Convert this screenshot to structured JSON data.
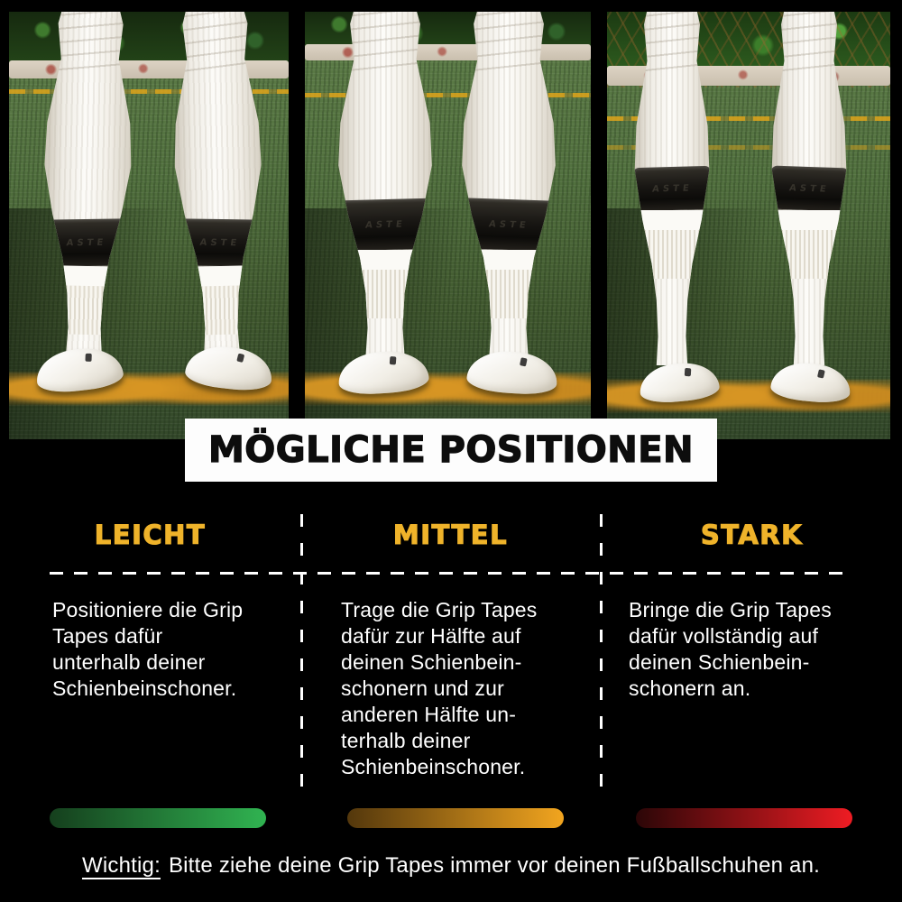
{
  "banner": {
    "title": "MÖGLICHE POSITIONEN"
  },
  "photos": {
    "tape_embossed_text": "ASTE",
    "panels": [
      {
        "name": "leicht-photo",
        "tape_position": "low-above-ankle"
      },
      {
        "name": "mittel-photo",
        "tape_position": "mid-calf"
      },
      {
        "name": "stark-photo",
        "tape_position": "high-below-knee"
      }
    ]
  },
  "columns": [
    {
      "header": "LEICHT",
      "body_lines": [
        "Positioniere die Grip",
        "Tapes dafür",
        "unterhalb deiner",
        "Schienbeinschoner."
      ]
    },
    {
      "header": "MITTEL",
      "body_lines": [
        "Trage die Grip Tapes",
        "dafür zur Hälfte auf",
        "deinen Schienbein-",
        "schonern und zur",
        "anderen Hälfte un-",
        "terhalb deiner",
        "Schienbeinschoner."
      ]
    },
    {
      "header": "STARK",
      "body_lines": [
        "Bringe die Grip Tapes",
        "dafür vollständig auf",
        "deinen Schienbein-",
        "schonern an."
      ]
    }
  ],
  "bars": [
    {
      "name": "leicht-intensity",
      "color_from": "#153F1D",
      "color_to": "#30B351"
    },
    {
      "name": "mittel-intensity",
      "color_from": "#53370C",
      "color_to": "#F2A51F"
    },
    {
      "name": "stark-intensity",
      "color_from": "#2B0607",
      "color_to": "#EE1C23"
    }
  ],
  "footer": {
    "label": "Wichtig:",
    "text": "Bitte ziehe deine Grip Tapes immer vor deinen Fußballschuhen an."
  },
  "colors": {
    "background": "#000000",
    "accent_yellow": "#EFB32A",
    "banner_bg": "#FFFFFF",
    "banner_text": "#0D0D0D",
    "body_text": "#FFFFFF",
    "grass_green": "#4C6A3B",
    "turf_mark_orange": "#D89624",
    "tape_black": "#14120F"
  }
}
